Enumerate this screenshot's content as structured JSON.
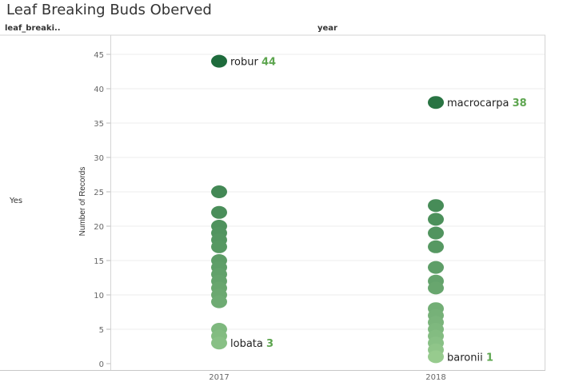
{
  "page": {
    "title": "Leaf Breaking Buds Oberved",
    "row_header": "leaf_breaki..",
    "column_header": "year",
    "row_label": "Yes"
  },
  "chart_data": {
    "type": "scatter",
    "title": "Leaf Breaking Buds Oberved",
    "xlabel": "",
    "ylabel": "Number of Records",
    "categories": [
      "2017",
      "2018"
    ],
    "ylim": [
      0,
      47
    ],
    "yticks": [
      0,
      5,
      10,
      15,
      20,
      25,
      30,
      35,
      40,
      45
    ],
    "grid": true,
    "color_scale": {
      "low": "#a8d99a",
      "high": "#1e6b3c"
    },
    "points": [
      {
        "x": "2017",
        "y": 44,
        "label": "robur"
      },
      {
        "x": "2017",
        "y": 25
      },
      {
        "x": "2017",
        "y": 22
      },
      {
        "x": "2017",
        "y": 20
      },
      {
        "x": "2017",
        "y": 19
      },
      {
        "x": "2017",
        "y": 18
      },
      {
        "x": "2017",
        "y": 17
      },
      {
        "x": "2017",
        "y": 15
      },
      {
        "x": "2017",
        "y": 14
      },
      {
        "x": "2017",
        "y": 13
      },
      {
        "x": "2017",
        "y": 12
      },
      {
        "x": "2017",
        "y": 11
      },
      {
        "x": "2017",
        "y": 10
      },
      {
        "x": "2017",
        "y": 9
      },
      {
        "x": "2017",
        "y": 5
      },
      {
        "x": "2017",
        "y": 4
      },
      {
        "x": "2017",
        "y": 3,
        "label": "lobata"
      },
      {
        "x": "2018",
        "y": 38,
        "label": "macrocarpa"
      },
      {
        "x": "2018",
        "y": 23
      },
      {
        "x": "2018",
        "y": 21
      },
      {
        "x": "2018",
        "y": 19
      },
      {
        "x": "2018",
        "y": 17
      },
      {
        "x": "2018",
        "y": 14
      },
      {
        "x": "2018",
        "y": 12
      },
      {
        "x": "2018",
        "y": 11
      },
      {
        "x": "2018",
        "y": 8
      },
      {
        "x": "2018",
        "y": 7
      },
      {
        "x": "2018",
        "y": 6
      },
      {
        "x": "2018",
        "y": 5
      },
      {
        "x": "2018",
        "y": 4
      },
      {
        "x": "2018",
        "y": 3
      },
      {
        "x": "2018",
        "y": 2
      },
      {
        "x": "2018",
        "y": 1,
        "label": "baronii"
      }
    ]
  }
}
